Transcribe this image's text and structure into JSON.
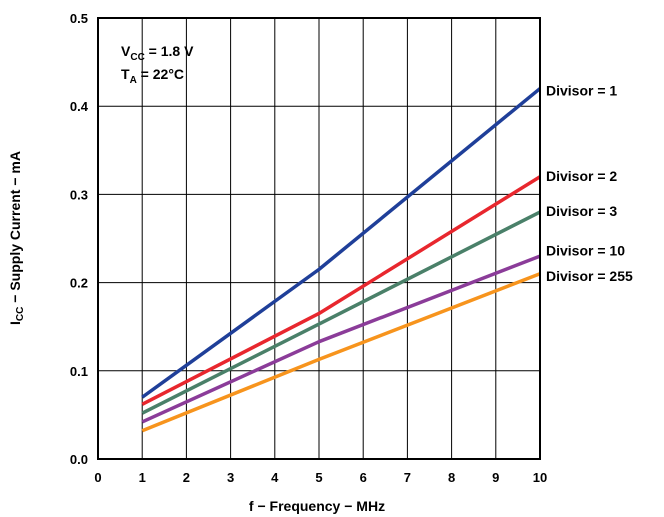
{
  "chart_data": {
    "type": "line",
    "xlabel": "f − Frequency − MHz",
    "ylabel": {
      "main": "I",
      "sub": "CC",
      "rest": " − Supply Current − mA"
    },
    "xlim": [
      0,
      10
    ],
    "ylim": [
      0,
      0.5
    ],
    "x_ticks": [
      "0",
      "1",
      "2",
      "3",
      "4",
      "5",
      "6",
      "7",
      "8",
      "9",
      "10"
    ],
    "y_ticks": [
      "0.0",
      "0.1",
      "0.2",
      "0.3",
      "0.4",
      "0.5"
    ],
    "grid": true,
    "annotations": [
      {
        "main": "V",
        "sub": "CC",
        "rest": " = 1.8 V"
      },
      {
        "main": "T",
        "sub": "A",
        "rest": " = 22°C"
      }
    ],
    "series": [
      {
        "name": "Divisor = 1",
        "color": "#1f3f99",
        "x": [
          1,
          5,
          10
        ],
        "y": [
          0.07,
          0.215,
          0.42
        ]
      },
      {
        "name": "Divisor = 2",
        "color": "#e8272e",
        "x": [
          1,
          5,
          10
        ],
        "y": [
          0.062,
          0.165,
          0.32
        ]
      },
      {
        "name": "Divisor = 3",
        "color": "#4a8069",
        "x": [
          1,
          5,
          10
        ],
        "y": [
          0.052,
          0.153,
          0.28
        ]
      },
      {
        "name": "Divisor = 10",
        "color": "#8b3c99",
        "x": [
          1,
          5,
          10
        ],
        "y": [
          0.042,
          0.133,
          0.23
        ]
      },
      {
        "name": "Divisor = 255",
        "color": "#f7941d",
        "x": [
          1,
          5,
          10
        ],
        "y": [
          0.032,
          0.113,
          0.21
        ]
      }
    ]
  }
}
